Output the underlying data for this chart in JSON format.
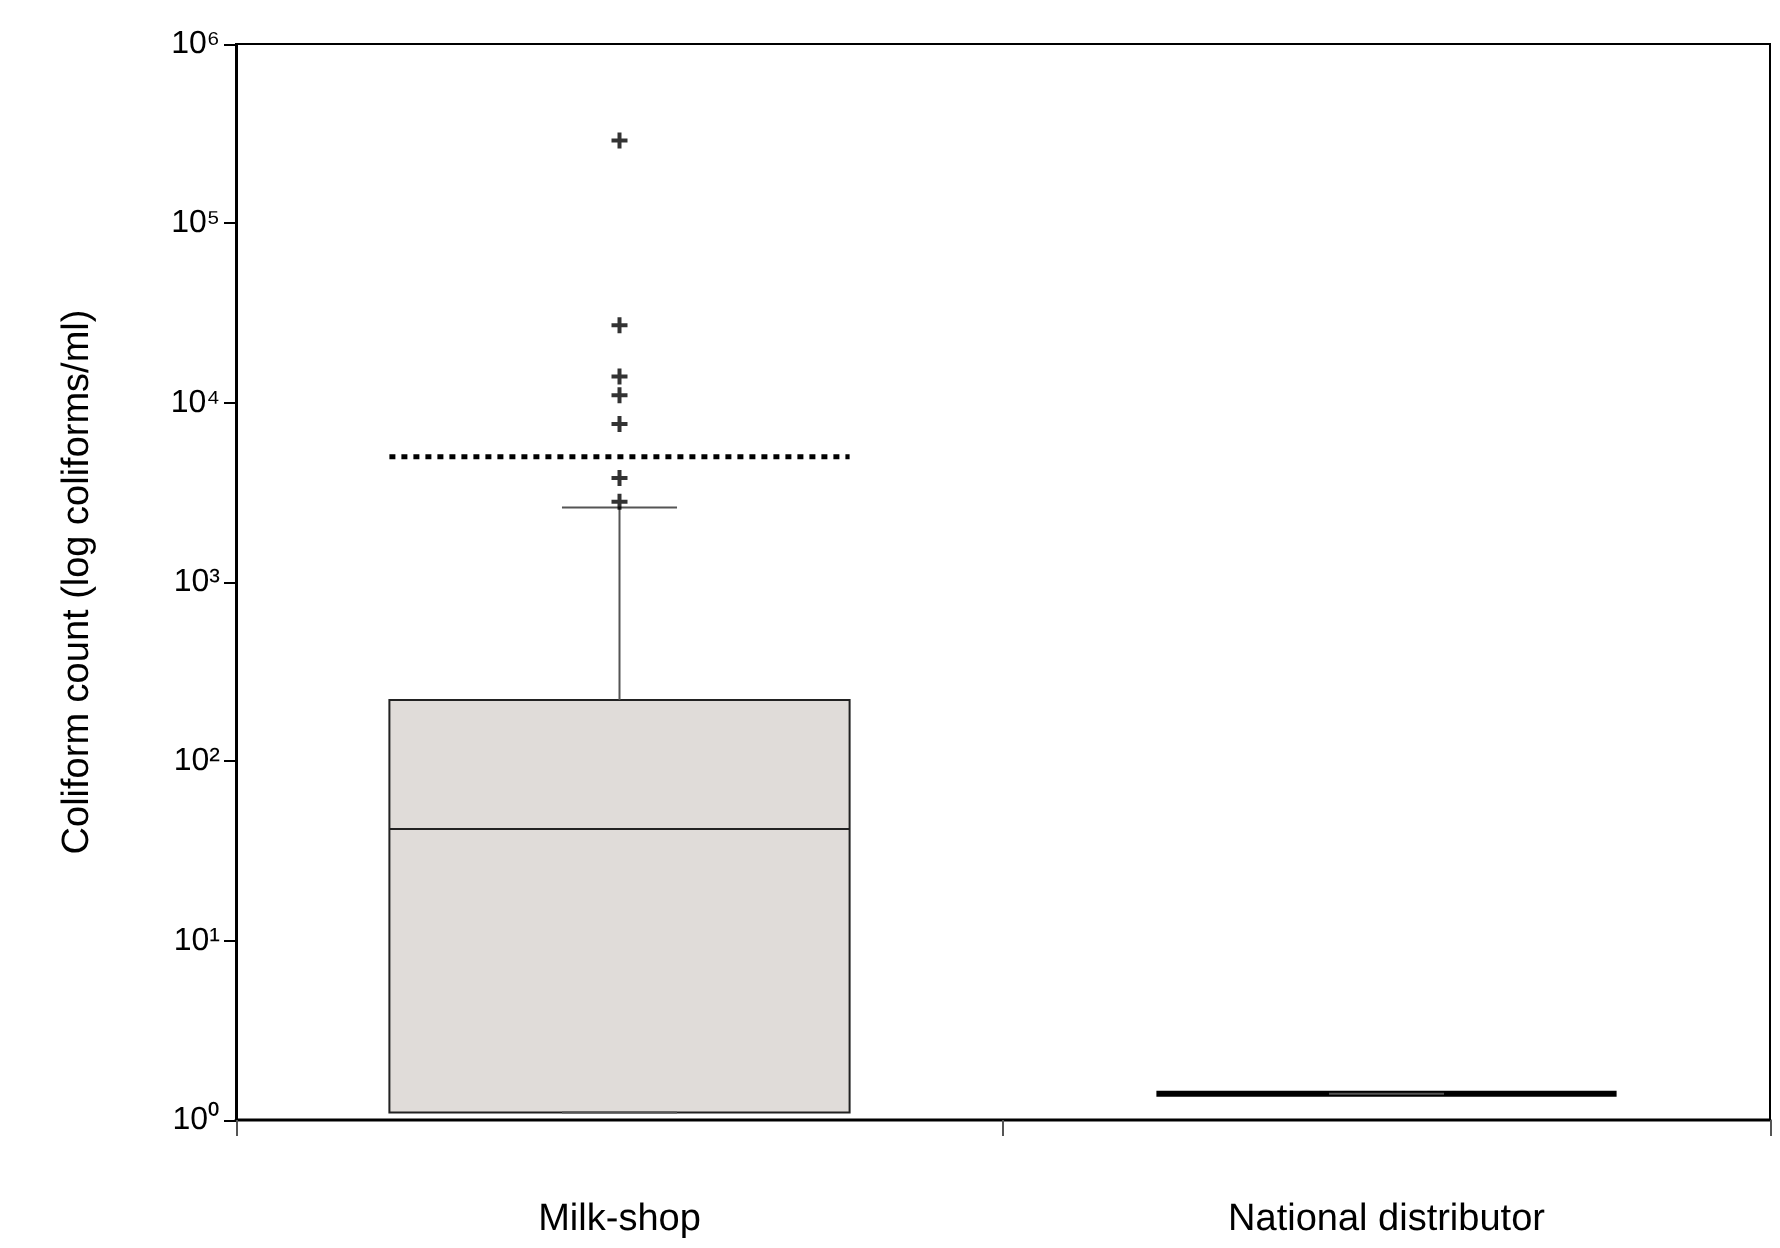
{
  "chart_data": {
    "type": "box",
    "ylabel": "Coliform count (log coliforms/ml)",
    "categories": [
      "Milk-shop",
      "National distributor"
    ],
    "boxes": [
      {
        "low": 1.1,
        "q1": 1.1,
        "median": 42,
        "q3": 220,
        "high": 2600,
        "mean": 5000,
        "outliers": [
          2800,
          3800,
          7600,
          11000,
          14000,
          27000,
          290000
        ]
      },
      {
        "low": 1.4,
        "q1": 1.4,
        "median": 1.4,
        "q3": 1.4,
        "high": 1.4
      }
    ],
    "colors": [
      "#e0dcd9",
      "#000000"
    ],
    "log": true,
    "ylim": [
      1,
      1000000
    ],
    "yticks": [
      {
        "value": 1,
        "label": "10⁰"
      },
      {
        "value": 10,
        "label": "10¹"
      },
      {
        "value": 100,
        "label": "10²"
      },
      {
        "value": 1000,
        "label": "10³"
      },
      {
        "value": 10000,
        "label": "10⁴"
      },
      {
        "value": 100000,
        "label": "10⁵"
      },
      {
        "value": 1000000,
        "label": "10⁶"
      }
    ],
    "marker": "cross",
    "grid": false
  }
}
